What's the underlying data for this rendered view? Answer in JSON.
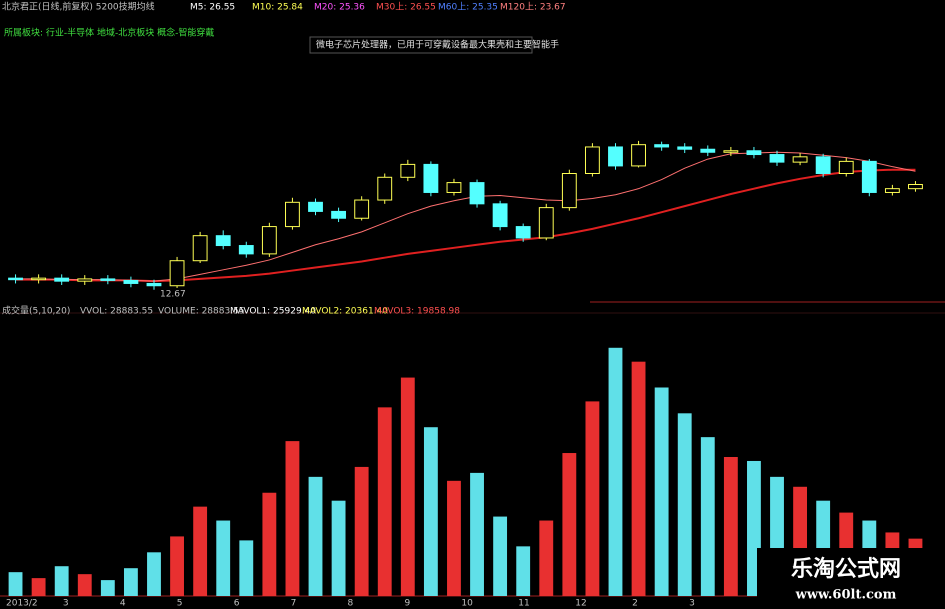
{
  "header": {
    "title": "北京君正(日线,前复权) 5200技期均线",
    "ma_labels": [
      "M5: 26.55",
      "M10: 25.84",
      "M20: 25.36",
      "M30上: 26.55",
      "M60上: 25.35",
      "M120上: 23.67"
    ],
    "sector": "所属板块: 行业-半导体 地域-北京板块 概念-智能穿戴",
    "note": "微电子芯片处理器，已用于可穿戴设备最大果壳和主要智能手"
  },
  "volume_header": {
    "title": "成交量(5,10,20)",
    "items": [
      "VVOL: 28883.55",
      "VOLUME: 28883.55",
      "MAVOL1: 25929.40",
      "MAVOL2: 20361.40",
      "MAVOL3: 19858.98"
    ]
  },
  "watermark": {
    "name": "乐淘公式网",
    "url": "www.60lt.com"
  },
  "chart_data": [
    {
      "type": "candlestick",
      "up_color": "#ffff54",
      "down_color": "#54ffff",
      "ylim": [
        10,
        34
      ],
      "open": [
        14.2,
        14.0,
        14.2,
        13.8,
        14.1,
        13.9,
        13.5,
        13.2,
        16.5,
        19.8,
        18.5,
        17.4,
        21.0,
        24.2,
        23.0,
        22.1,
        24.5,
        27.5,
        29.2,
        25.5,
        26.8,
        24.0,
        21.0,
        19.5,
        23.5,
        28.0,
        31.5,
        29.0,
        31.8,
        31.5,
        31.2,
        30.8,
        31.0,
        30.5,
        29.5,
        30.2,
        28.0,
        29.6,
        25.5,
        26.0
      ],
      "high": [
        14.7,
        14.7,
        14.7,
        14.6,
        14.6,
        14.4,
        14.0,
        17.0,
        20.3,
        20.5,
        19.0,
        21.5,
        24.8,
        24.7,
        23.5,
        25.0,
        28.0,
        29.8,
        29.6,
        27.3,
        27.2,
        24.4,
        21.4,
        24.0,
        28.5,
        32.0,
        32.0,
        32.3,
        32.2,
        32.0,
        31.7,
        31.5,
        31.5,
        31.0,
        30.7,
        30.6,
        30.1,
        29.9,
        26.5,
        27.0
      ],
      "low": [
        13.5,
        13.5,
        13.3,
        13.3,
        13.4,
        13.0,
        12.67,
        12.9,
        16.2,
        18.0,
        16.9,
        17.0,
        20.6,
        22.5,
        21.6,
        21.8,
        24.0,
        27.0,
        25.0,
        25.1,
        23.5,
        20.5,
        19.0,
        19.2,
        23.1,
        27.6,
        28.5,
        28.8,
        31.0,
        30.7,
        30.3,
        30.3,
        30.0,
        29.0,
        29.1,
        27.5,
        27.6,
        25.0,
        25.1,
        25.6
      ],
      "close": [
        14.0,
        14.2,
        13.8,
        14.1,
        13.9,
        13.5,
        13.2,
        16.5,
        19.8,
        18.5,
        17.4,
        21.0,
        24.2,
        23.0,
        22.1,
        24.5,
        27.5,
        29.2,
        25.5,
        26.8,
        24.0,
        21.0,
        19.5,
        23.5,
        28.0,
        31.5,
        29.0,
        31.8,
        31.5,
        31.2,
        30.8,
        31.0,
        30.5,
        29.5,
        30.2,
        28.0,
        29.6,
        25.5,
        26.0,
        26.55
      ],
      "lines": [
        {
          "color": "#e02020",
          "values": [
            14.0,
            14.0,
            14.0,
            13.9,
            13.9,
            13.9,
            13.8,
            13.9,
            14.1,
            14.3,
            14.5,
            14.8,
            15.2,
            15.6,
            16.0,
            16.4,
            16.9,
            17.4,
            17.8,
            18.2,
            18.6,
            19.0,
            19.3,
            19.6,
            20.1,
            20.7,
            21.4,
            22.1,
            22.9,
            23.7,
            24.5,
            25.3,
            26.0,
            26.7,
            27.3,
            27.8,
            28.2,
            28.4,
            28.5,
            28.5
          ]
        },
        {
          "color": "#ff7070",
          "values": [
            14.1,
            14.1,
            14.0,
            14.0,
            14.0,
            13.9,
            13.8,
            14.1,
            14.7,
            15.3,
            15.9,
            16.6,
            17.6,
            18.6,
            19.4,
            20.3,
            21.5,
            22.7,
            23.7,
            24.4,
            25.0,
            25.1,
            24.8,
            24.5,
            24.4,
            24.7,
            25.2,
            26.0,
            27.2,
            28.7,
            29.9,
            30.6,
            30.7,
            30.8,
            30.7,
            30.4,
            30.1,
            29.6,
            28.9,
            28.3
          ]
        }
      ]
    },
    {
      "type": "bar",
      "up_color": "#e83030",
      "down_color": "#60e0e8",
      "ylim": [
        0,
        140000
      ],
      "values": [
        12000,
        9000,
        15000,
        11000,
        8000,
        14000,
        22000,
        30000,
        45000,
        38000,
        28000,
        52000,
        78000,
        60000,
        48000,
        65000,
        95000,
        110000,
        85000,
        58000,
        62000,
        40000,
        25000,
        38000,
        72000,
        98000,
        125000,
        118000,
        105000,
        92000,
        80000,
        70000,
        68000,
        60000,
        55000,
        48000,
        42000,
        38000,
        32000,
        28883.55
      ],
      "x_labels": [
        "2013/2",
        "3",
        "4",
        "5",
        "6",
        "7",
        "8",
        "9",
        "10",
        "11",
        "12",
        "2",
        "3"
      ]
    }
  ]
}
